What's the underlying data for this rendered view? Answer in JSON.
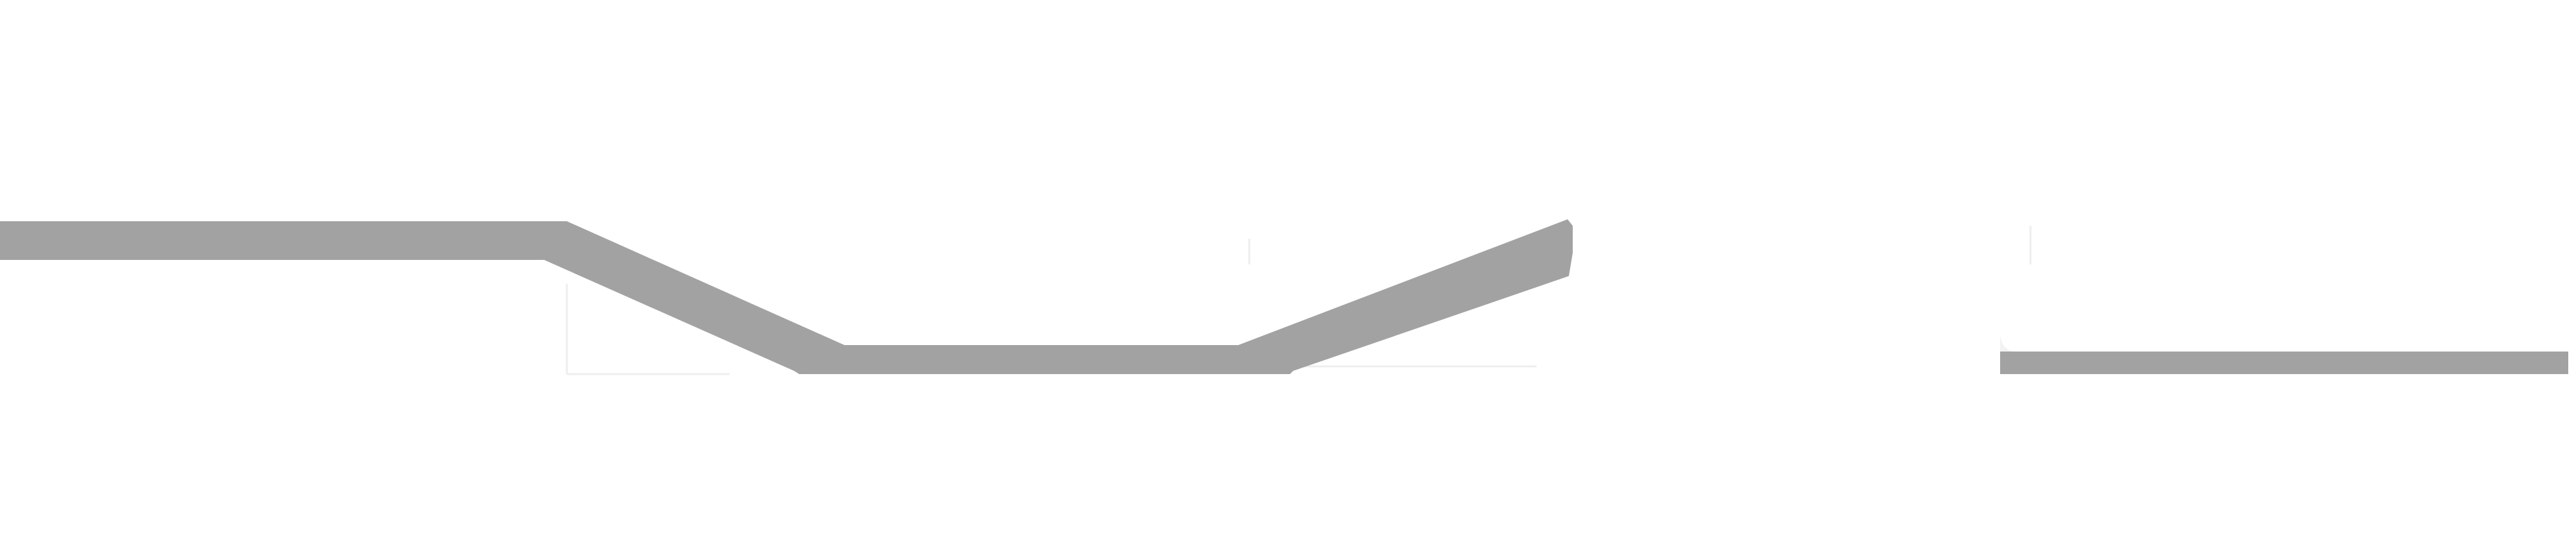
{
  "page": {
    "background_color": "#ffffff"
  },
  "graphic": {
    "description_kind": "line-profile",
    "band_color": "#a2a2a2",
    "faint_edge_color": "#f0f0f0"
  }
}
